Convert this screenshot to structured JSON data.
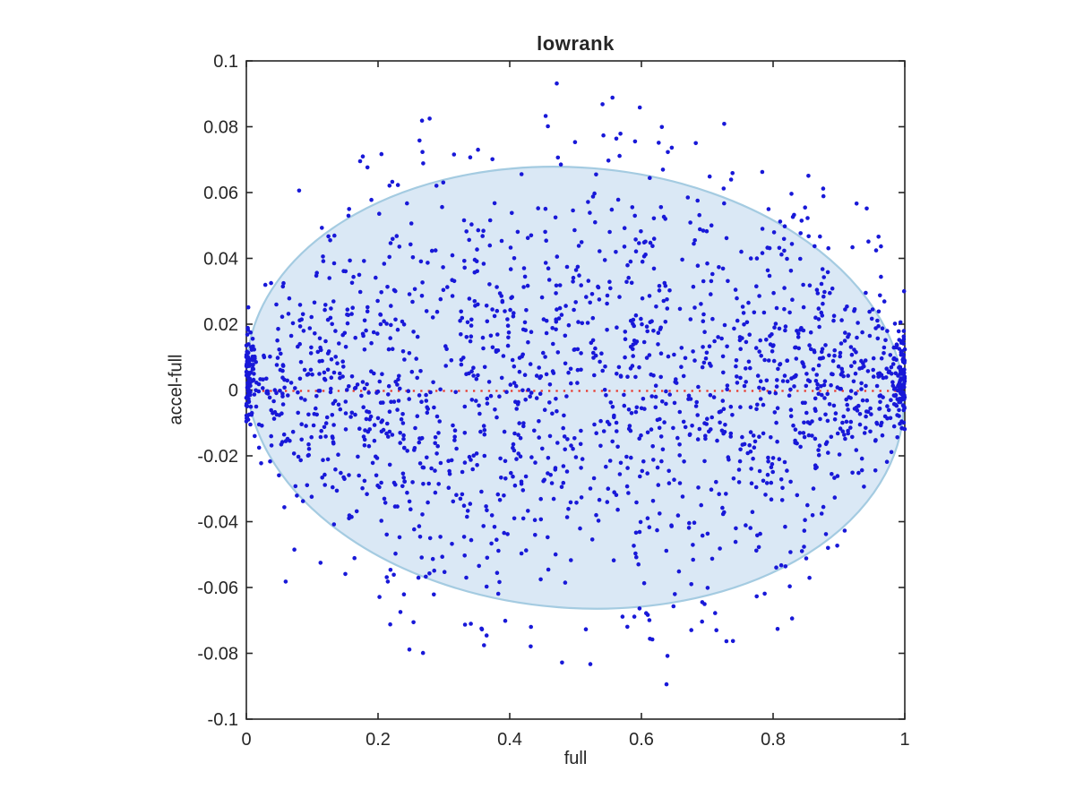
{
  "figure": {
    "title": "lowrank"
  },
  "chart_data": {
    "type": "scatter",
    "title": "lowrank",
    "xlabel": "full",
    "ylabel": "accel-full",
    "xlim": [
      0,
      1
    ],
    "ylim": [
      -0.1,
      0.1
    ],
    "xticks": [
      0,
      0.2,
      0.4,
      0.6,
      0.8,
      1
    ],
    "xtick_labels": [
      "0",
      "0.2",
      "0.4",
      "0.6",
      "0.8",
      "1"
    ],
    "yticks": [
      0.1,
      0.08,
      0.06,
      0.04,
      0.02,
      0,
      -0.02,
      -0.04,
      -0.06,
      -0.08,
      -0.1
    ],
    "ytick_labels": [
      "0.1",
      "0.08",
      "0.06",
      "0.04",
      "0.02",
      "0",
      "-0.02",
      "-0.04",
      "-0.06",
      "-0.08",
      "-0.1"
    ],
    "grid": false,
    "box": true,
    "axis_color": "#262626",
    "marker": {
      "shape": "dot",
      "color": "#1818D8",
      "radius_px": 2.3
    },
    "zero_line": {
      "y": 0,
      "style": "dotted",
      "color": "#E8362B",
      "x_from": 0,
      "x_to": 1
    },
    "ellipse": {
      "center_x": 0.4993,
      "center_y": 0.0007,
      "rx_data": 0.5,
      "ry_data": 0.0669,
      "rotation_deg": 4.5,
      "fill": "#DAE8F5",
      "stroke": "#A4CBE1",
      "stroke_width": 2.2
    },
    "scatter_model": {
      "seed": 20177,
      "n_core": 1700,
      "x_power": 0.9,
      "sigma_at_half": 0.0335,
      "mean_offset": 0.001,
      "edge_clusters": [
        {
          "side": "left",
          "count": 80,
          "x_scale": 0.014,
          "y_mean": 0.004,
          "y_sd": 0.008
        },
        {
          "side": "right",
          "count": 80,
          "x_scale": 0.014,
          "y_mean": 0.004,
          "y_sd": 0.008
        }
      ],
      "halo_clusters": [
        {
          "count": 26,
          "x_min": 0.74,
          "x_max": 0.97,
          "y_base": 0.042,
          "y_spread": 0.012,
          "sign": 1
        },
        {
          "count": 10,
          "x_min": 0.25,
          "x_max": 0.65,
          "y_base": 0.064,
          "y_spread": 0.011,
          "sign": 1
        },
        {
          "count": 8,
          "x_min": 0.08,
          "x_max": 0.3,
          "y_base": 0.05,
          "y_spread": 0.012,
          "sign": 1
        },
        {
          "count": 12,
          "x_min": 0.3,
          "x_max": 0.72,
          "y_base": 0.066,
          "y_spread": 0.012,
          "sign": -1
        },
        {
          "count": 8,
          "x_min": 0.1,
          "x_max": 0.32,
          "y_base": 0.048,
          "y_spread": 0.012,
          "sign": -1
        }
      ]
    }
  }
}
